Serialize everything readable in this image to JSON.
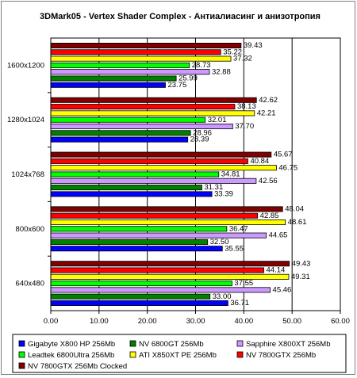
{
  "chart_data": {
    "type": "bar",
    "orientation": "horizontal",
    "title": "3DMark05 - Vertex Shader Complex - Антиалиасинг и анизотропия",
    "categories": [
      "1600x1200",
      "1280x1024",
      "1024x768",
      "800x600",
      "640x480"
    ],
    "series": [
      {
        "name": "NV 7800GTX 256Mb Clocked",
        "color": "#800000",
        "values": [
          39.43,
          42.62,
          45.67,
          48.04,
          49.43
        ]
      },
      {
        "name": "NV 7800GTX 256Mb",
        "color": "#ff0000",
        "values": [
          35.22,
          38.13,
          40.84,
          42.85,
          44.14
        ]
      },
      {
        "name": "ATI X850XT PE 256Mb",
        "color": "#ffff00",
        "values": [
          37.32,
          42.21,
          46.75,
          48.61,
          49.31
        ]
      },
      {
        "name": "Leadtek 6800Ultra 256Mb",
        "color": "#00ff00",
        "values": [
          28.73,
          32.01,
          34.81,
          36.47,
          37.55
        ]
      },
      {
        "name": "Sapphire X800XT 256Mb",
        "color": "#cc99ff",
        "values": [
          32.88,
          37.7,
          42.56,
          44.65,
          45.46
        ]
      },
      {
        "name": "NV 6800GT 256Mb",
        "color": "#008000",
        "values": [
          25.99,
          28.96,
          31.31,
          32.5,
          33.0
        ]
      },
      {
        "name": "Gigabyte X800 HP 256Mb",
        "color": "#0000ff",
        "values": [
          23.75,
          28.39,
          33.39,
          35.55,
          36.71
        ]
      }
    ],
    "xlim": [
      0,
      60
    ],
    "ticks": [
      "0.00",
      "10.00",
      "20.00",
      "30.00",
      "40.00",
      "50.00",
      "60.00"
    ],
    "grid": true,
    "legend_position": "bottom"
  }
}
